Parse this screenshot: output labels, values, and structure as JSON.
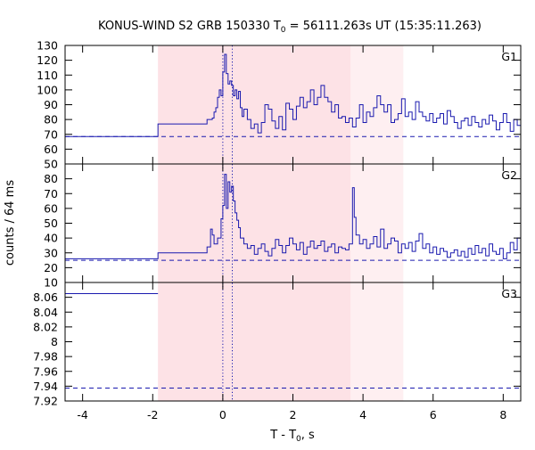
{
  "chart_data": {
    "type": "line",
    "title": "KONUS-WIND S2 GRB 150330 T",
    "title_sub": "0",
    "title_rest": " = 56111.263s UT (15:35:11.263)",
    "xlabel": "T - T",
    "xlabel_sub": "0",
    "xlabel_rest": ", s",
    "ylabel": "counts / 64 ms",
    "xlim": [
      -4.5,
      8.5
    ],
    "x_ticks": [
      -4,
      -2,
      0,
      2,
      4,
      6,
      8
    ],
    "x_tick_labels": [
      "-4",
      "-2",
      "0",
      "2",
      "4",
      "6",
      "8"
    ],
    "grid": false,
    "line_color": "#1a1aaf",
    "shaded_regions": [
      {
        "x": [
          -1.85,
          3.65
        ],
        "color": "#fde2e6"
      },
      {
        "x": [
          3.65,
          5.15
        ],
        "color": "#feeff1"
      }
    ],
    "vertical_markers": [
      0.0,
      0.27
    ],
    "panels": [
      {
        "name": "G1",
        "ylim": [
          50,
          130
        ],
        "y_ticks": [
          50,
          60,
          70,
          80,
          90,
          100,
          110,
          120,
          130
        ],
        "y_tick_labels": [
          "50",
          "60",
          "70",
          "80",
          "90",
          "100",
          "110",
          "120",
          "130"
        ],
        "background_level": 68.5,
        "steps": [
          [
            -4.5,
            68.5
          ],
          [
            -1.85,
            68.5
          ],
          [
            -1.85,
            77
          ],
          [
            -0.45,
            77
          ],
          [
            -0.45,
            80
          ],
          [
            -0.3,
            81
          ],
          [
            -0.25,
            85
          ],
          [
            -0.2,
            88
          ],
          [
            -0.15,
            95
          ],
          [
            -0.1,
            100
          ],
          [
            -0.05,
            96
          ],
          [
            0.0,
            112
          ],
          [
            0.05,
            124
          ],
          [
            0.1,
            111
          ],
          [
            0.15,
            104
          ],
          [
            0.2,
            106
          ],
          [
            0.25,
            103
          ],
          [
            0.3,
            96
          ],
          [
            0.35,
            100
          ],
          [
            0.4,
            94
          ],
          [
            0.45,
            99
          ],
          [
            0.5,
            88
          ],
          [
            0.55,
            82
          ],
          [
            0.6,
            87
          ],
          [
            0.7,
            80
          ],
          [
            0.8,
            74
          ],
          [
            0.9,
            77
          ],
          [
            1.0,
            71
          ],
          [
            1.1,
            78
          ],
          [
            1.2,
            90
          ],
          [
            1.3,
            87
          ],
          [
            1.4,
            79
          ],
          [
            1.5,
            74
          ],
          [
            1.6,
            82
          ],
          [
            1.7,
            73
          ],
          [
            1.8,
            91
          ],
          [
            1.9,
            87
          ],
          [
            2.0,
            80
          ],
          [
            2.1,
            89
          ],
          [
            2.2,
            95
          ],
          [
            2.3,
            88
          ],
          [
            2.4,
            92
          ],
          [
            2.5,
            100
          ],
          [
            2.6,
            90
          ],
          [
            2.7,
            95
          ],
          [
            2.8,
            103
          ],
          [
            2.9,
            95
          ],
          [
            3.0,
            92
          ],
          [
            3.1,
            85
          ],
          [
            3.2,
            90
          ],
          [
            3.3,
            81
          ],
          [
            3.4,
            82
          ],
          [
            3.5,
            78
          ],
          [
            3.6,
            81
          ],
          [
            3.7,
            75
          ],
          [
            3.8,
            81
          ],
          [
            3.9,
            90
          ],
          [
            4.0,
            78
          ],
          [
            4.1,
            85
          ],
          [
            4.2,
            82
          ],
          [
            4.3,
            88
          ],
          [
            4.4,
            96
          ],
          [
            4.5,
            90
          ],
          [
            4.6,
            85
          ],
          [
            4.7,
            90
          ],
          [
            4.8,
            78
          ],
          [
            4.9,
            80
          ],
          [
            5.0,
            84
          ],
          [
            5.1,
            94
          ],
          [
            5.2,
            82
          ],
          [
            5.3,
            85
          ],
          [
            5.4,
            80
          ],
          [
            5.5,
            92
          ],
          [
            5.6,
            85
          ],
          [
            5.7,
            82
          ],
          [
            5.8,
            79
          ],
          [
            5.9,
            84
          ],
          [
            6.0,
            78
          ],
          [
            6.1,
            81
          ],
          [
            6.2,
            84
          ],
          [
            6.3,
            77
          ],
          [
            6.4,
            86
          ],
          [
            6.5,
            82
          ],
          [
            6.6,
            78
          ],
          [
            6.7,
            74
          ],
          [
            6.8,
            79
          ],
          [
            6.9,
            81
          ],
          [
            7.0,
            76
          ],
          [
            7.1,
            82
          ],
          [
            7.2,
            78
          ],
          [
            7.3,
            75
          ],
          [
            7.4,
            80
          ],
          [
            7.5,
            77
          ],
          [
            7.6,
            83
          ],
          [
            7.7,
            79
          ],
          [
            7.8,
            73
          ],
          [
            7.9,
            78
          ],
          [
            8.0,
            84
          ],
          [
            8.1,
            78
          ],
          [
            8.2,
            72
          ],
          [
            8.3,
            80
          ],
          [
            8.4,
            76
          ],
          [
            8.5,
            76
          ]
        ]
      },
      {
        "name": "G2",
        "ylim": [
          10,
          90
        ],
        "y_ticks": [
          10,
          20,
          30,
          40,
          50,
          60,
          70,
          80
        ],
        "y_tick_labels": [
          "10",
          "20",
          "30",
          "40",
          "50",
          "60",
          "70",
          "80"
        ],
        "background_level": 25,
        "steps": [
          [
            -4.5,
            26
          ],
          [
            -1.85,
            26
          ],
          [
            -1.85,
            30
          ],
          [
            -0.45,
            30
          ],
          [
            -0.45,
            34
          ],
          [
            -0.35,
            46
          ],
          [
            -0.3,
            42
          ],
          [
            -0.25,
            36
          ],
          [
            -0.15,
            40
          ],
          [
            -0.05,
            53
          ],
          [
            0.0,
            62
          ],
          [
            0.05,
            83
          ],
          [
            0.1,
            60
          ],
          [
            0.15,
            78
          ],
          [
            0.2,
            71
          ],
          [
            0.25,
            75
          ],
          [
            0.3,
            65
          ],
          [
            0.35,
            57
          ],
          [
            0.4,
            52
          ],
          [
            0.45,
            47
          ],
          [
            0.5,
            40
          ],
          [
            0.6,
            36
          ],
          [
            0.7,
            33
          ],
          [
            0.8,
            35
          ],
          [
            0.9,
            29
          ],
          [
            1.0,
            33
          ],
          [
            1.1,
            36
          ],
          [
            1.2,
            31
          ],
          [
            1.3,
            28
          ],
          [
            1.4,
            33
          ],
          [
            1.5,
            39
          ],
          [
            1.6,
            35
          ],
          [
            1.7,
            30
          ],
          [
            1.8,
            35
          ],
          [
            1.9,
            40
          ],
          [
            2.0,
            36
          ],
          [
            2.1,
            32
          ],
          [
            2.2,
            37
          ],
          [
            2.3,
            29
          ],
          [
            2.4,
            34
          ],
          [
            2.5,
            38
          ],
          [
            2.6,
            33
          ],
          [
            2.7,
            35
          ],
          [
            2.8,
            38
          ],
          [
            2.9,
            31
          ],
          [
            3.0,
            34
          ],
          [
            3.1,
            36
          ],
          [
            3.2,
            30
          ],
          [
            3.3,
            34
          ],
          [
            3.4,
            33
          ],
          [
            3.5,
            32
          ],
          [
            3.6,
            36
          ],
          [
            3.7,
            74
          ],
          [
            3.75,
            54
          ],
          [
            3.8,
            42
          ],
          [
            3.9,
            36
          ],
          [
            4.0,
            39
          ],
          [
            4.1,
            33
          ],
          [
            4.2,
            36
          ],
          [
            4.3,
            41
          ],
          [
            4.4,
            34
          ],
          [
            4.5,
            46
          ],
          [
            4.6,
            33
          ],
          [
            4.7,
            36
          ],
          [
            4.8,
            40
          ],
          [
            4.9,
            38
          ],
          [
            5.0,
            30
          ],
          [
            5.1,
            36
          ],
          [
            5.2,
            33
          ],
          [
            5.3,
            37
          ],
          [
            5.4,
            31
          ],
          [
            5.5,
            38
          ],
          [
            5.6,
            43
          ],
          [
            5.7,
            33
          ],
          [
            5.8,
            36
          ],
          [
            5.9,
            30
          ],
          [
            6.0,
            34
          ],
          [
            6.1,
            29
          ],
          [
            6.2,
            33
          ],
          [
            6.3,
            31
          ],
          [
            6.4,
            27
          ],
          [
            6.5,
            30
          ],
          [
            6.6,
            32
          ],
          [
            6.7,
            28
          ],
          [
            6.8,
            31
          ],
          [
            6.9,
            27
          ],
          [
            7.0,
            33
          ],
          [
            7.1,
            29
          ],
          [
            7.2,
            35
          ],
          [
            7.3,
            30
          ],
          [
            7.4,
            33
          ],
          [
            7.5,
            28
          ],
          [
            7.6,
            36
          ],
          [
            7.7,
            31
          ],
          [
            7.8,
            29
          ],
          [
            7.9,
            33
          ],
          [
            8.0,
            26
          ],
          [
            8.1,
            30
          ],
          [
            8.2,
            37
          ],
          [
            8.3,
            32
          ],
          [
            8.4,
            40
          ],
          [
            8.5,
            40
          ]
        ]
      },
      {
        "name": "G3",
        "ylim": [
          7.92,
          8.08
        ],
        "y_ticks": [
          7.92,
          7.94,
          7.96,
          7.98,
          8.0,
          8.02,
          8.04,
          8.06
        ],
        "y_tick_labels": [
          "7.92",
          "7.94",
          "7.96",
          "7.98",
          "8",
          "8.02",
          "8.04",
          "8.06"
        ],
        "background_level": 7.9375,
        "steps": [
          [
            -4.5,
            8.065
          ],
          [
            -1.85,
            8.065
          ]
        ]
      }
    ]
  }
}
